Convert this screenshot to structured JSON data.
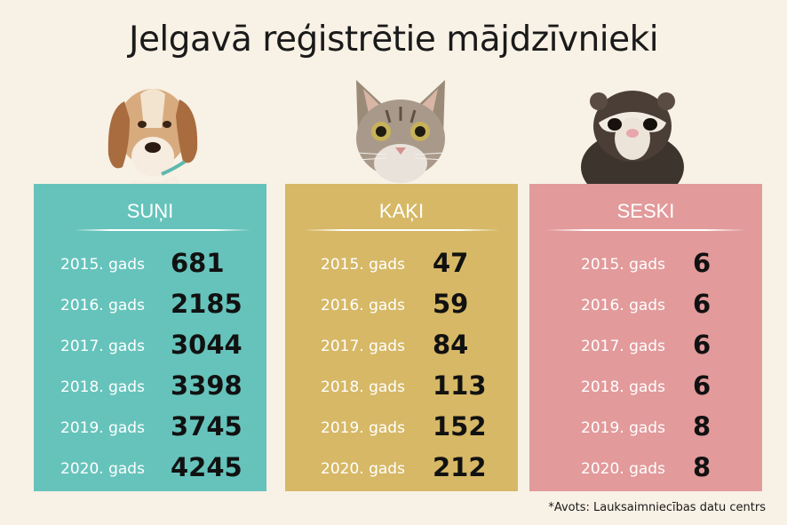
{
  "title": "Jelgavā reģistrētie mājdzīvnieki",
  "source": "*Avots: Lauksaimniecības datu centrs",
  "colors": {
    "background": "#f8f1e5",
    "dogs": "#66c3bb",
    "cats": "#d6b866",
    "ferrets": "#e29a9b"
  },
  "panels": [
    {
      "title": "SUŅI",
      "animal_icon": "dog-icon",
      "rows": [
        {
          "year": "2015. gads",
          "value": "681"
        },
        {
          "year": "2016. gads",
          "value": "2185"
        },
        {
          "year": "2017. gads",
          "value": "3044"
        },
        {
          "year": "2018. gads",
          "value": "3398"
        },
        {
          "year": "2019. gads",
          "value": "3745"
        },
        {
          "year": "2020. gads",
          "value": "4245"
        }
      ]
    },
    {
      "title": "KAĶI",
      "animal_icon": "cat-icon",
      "rows": [
        {
          "year": "2015. gads",
          "value": "47"
        },
        {
          "year": "2016. gads",
          "value": "59"
        },
        {
          "year": "2017. gads",
          "value": "84"
        },
        {
          "year": "2018. gads",
          "value": "113"
        },
        {
          "year": "2019. gads",
          "value": "152"
        },
        {
          "year": "2020. gads",
          "value": "212"
        }
      ]
    },
    {
      "title": "SESKI",
      "animal_icon": "ferret-icon",
      "rows": [
        {
          "year": "2015. gads",
          "value": "6"
        },
        {
          "year": "2016. gads",
          "value": "6"
        },
        {
          "year": "2017. gads",
          "value": "6"
        },
        {
          "year": "2018. gads",
          "value": "6"
        },
        {
          "year": "2019. gads",
          "value": "8"
        },
        {
          "year": "2020. gads",
          "value": "8"
        }
      ]
    }
  ]
}
